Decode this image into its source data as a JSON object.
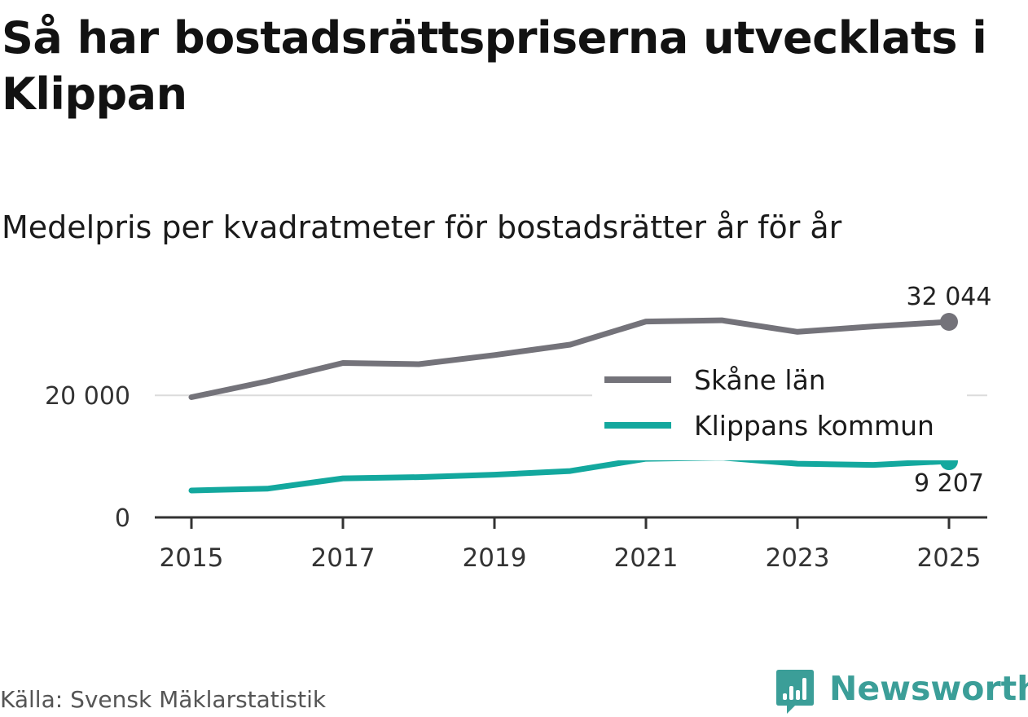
{
  "title": "Så har bostadsrättspriserna utvecklats i Klippan",
  "subtitle": "Medelpris per kvadratmeter för bostadsrätter år för år",
  "source": "Källa: Svensk Mäklarstatistik",
  "brand": {
    "name": "Newsworthy",
    "color": "#3b9e98",
    "icon": "bar-chart-speech-bubble-icon"
  },
  "chart_data": {
    "type": "line",
    "title": "Så har bostadsrättspriserna utvecklats i Klippan",
    "subtitle": "Medelpris per kvadratmeter för bostadsrätter år för år",
    "xlabel": "",
    "ylabel": "",
    "x": [
      2015,
      2016,
      2017,
      2018,
      2019,
      2020,
      2021,
      2022,
      2023,
      2024,
      2025
    ],
    "x_ticks": [
      2015,
      2017,
      2019,
      2021,
      2023,
      2025
    ],
    "x_tick_labels": [
      "2015",
      "2017",
      "2019",
      "2021",
      "2023",
      "2025"
    ],
    "xlim": [
      2015,
      2025
    ],
    "y_ticks": [
      0,
      20000
    ],
    "y_tick_labels": [
      "0",
      "20 000"
    ],
    "ylim": [
      0,
      32044
    ],
    "grid": "horizontal",
    "legend_position": "right",
    "series": [
      {
        "name": "Skåne län",
        "color": "#74737a",
        "values": [
          19700,
          22300,
          25300,
          25100,
          26600,
          28300,
          32100,
          32300,
          30400,
          31300,
          32044
        ],
        "end_label": "32 044"
      },
      {
        "name": "Klippans kommun",
        "color": "#13a89e",
        "values": [
          4400,
          4700,
          6400,
          6600,
          7000,
          7600,
          9600,
          9800,
          8800,
          8600,
          9207
        ],
        "end_label": "9 207"
      }
    ]
  }
}
